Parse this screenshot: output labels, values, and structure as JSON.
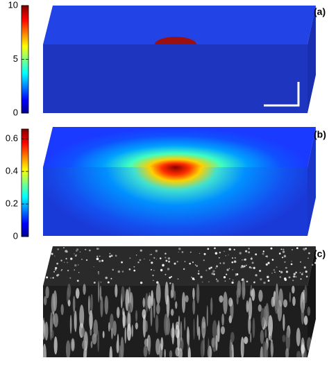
{
  "panels": [
    {
      "label": "(a)",
      "colorbar": {
        "lim": [
          0,
          10
        ],
        "ticks": [
          0,
          5,
          10
        ]
      }
    },
    {
      "label": "(b)",
      "colorbar": {
        "lim": [
          0,
          0.66
        ],
        "ticks": [
          0,
          0.2,
          0.4,
          0.6
        ]
      }
    },
    {
      "label": "(c)"
    }
  ]
}
